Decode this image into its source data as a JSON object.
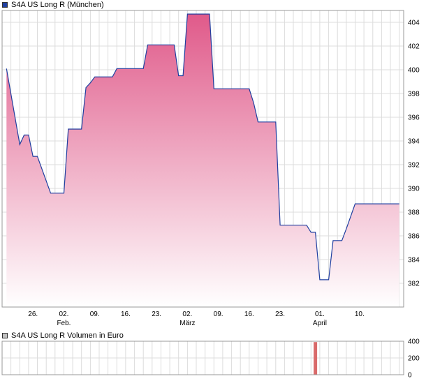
{
  "price_chart": {
    "legend_label": "S4A US Long R (München)",
    "line_color": "#1f3fa0",
    "fill_top_color": "#e05a8a",
    "fill_bottom_color": "#ffffff",
    "swatch_color": "#1f3fa0",
    "x_tick_labels": [
      "26.",
      "02.",
      "09.",
      "16.",
      "23.",
      "02.",
      "09.",
      "16.",
      "23.",
      "01.",
      "10."
    ],
    "month_labels": [
      "Feb.",
      "März",
      "April"
    ]
  },
  "volume_chart": {
    "legend_label": "S4A US Long R Volumen in Euro",
    "swatch_color": "#c0c0c0",
    "bar_color": "#d96a6a"
  },
  "chart_data": [
    {
      "type": "area",
      "title": "S4A US Long R (München)",
      "ylim": [
        380,
        405
      ],
      "y_ticks": [
        382,
        384,
        386,
        388,
        390,
        392,
        394,
        396,
        398,
        400,
        402,
        404
      ],
      "grid": true,
      "series": [
        {
          "values": [
            {
              "x": "2023-01-20",
              "y": 400.1
            },
            {
              "x": "2023-01-23",
              "y": 393.7
            },
            {
              "x": "2023-01-24",
              "y": 394.5
            },
            {
              "x": "2023-01-25",
              "y": 394.5
            },
            {
              "x": "2023-01-26",
              "y": 392.7
            },
            {
              "x": "2023-01-27",
              "y": 392.7
            },
            {
              "x": "2023-01-30",
              "y": 389.6
            },
            {
              "x": "2023-02-01",
              "y": 389.6
            },
            {
              "x": "2023-02-02",
              "y": 389.6
            },
            {
              "x": "2023-02-03",
              "y": 395.0
            },
            {
              "x": "2023-02-06",
              "y": 395.0
            },
            {
              "x": "2023-02-07",
              "y": 398.5
            },
            {
              "x": "2023-02-08",
              "y": 398.9
            },
            {
              "x": "2023-02-09",
              "y": 399.4
            },
            {
              "x": "2023-02-13",
              "y": 399.4
            },
            {
              "x": "2023-02-14",
              "y": 400.1
            },
            {
              "x": "2023-02-20",
              "y": 400.1
            },
            {
              "x": "2023-02-21",
              "y": 402.1
            },
            {
              "x": "2023-02-27",
              "y": 402.1
            },
            {
              "x": "2023-02-28",
              "y": 399.5
            },
            {
              "x": "2023-03-01",
              "y": 399.5
            },
            {
              "x": "2023-03-02",
              "y": 404.7
            },
            {
              "x": "2023-03-07",
              "y": 404.7
            },
            {
              "x": "2023-03-08",
              "y": 398.4
            },
            {
              "x": "2023-03-16",
              "y": 398.4
            },
            {
              "x": "2023-03-17",
              "y": 397.2
            },
            {
              "x": "2023-03-18",
              "y": 395.6
            },
            {
              "x": "2023-03-22",
              "y": 395.6
            },
            {
              "x": "2023-03-23",
              "y": 386.9
            },
            {
              "x": "2023-03-29",
              "y": 386.9
            },
            {
              "x": "2023-03-30",
              "y": 386.3
            },
            {
              "x": "2023-03-31",
              "y": 386.3
            },
            {
              "x": "2023-04-01",
              "y": 382.3
            },
            {
              "x": "2023-04-03",
              "y": 382.3
            },
            {
              "x": "2023-04-04",
              "y": 385.6
            },
            {
              "x": "2023-04-06",
              "y": 385.6
            },
            {
              "x": "2023-04-07",
              "y": 386.6
            },
            {
              "x": "2023-04-09",
              "y": 388.7
            },
            {
              "x": "2023-04-19",
              "y": 388.7
            }
          ]
        }
      ]
    },
    {
      "type": "bar",
      "title": "S4A US Long R Volumen in Euro",
      "ylim": [
        0,
        400
      ],
      "y_ticks": [
        0,
        200,
        400
      ],
      "grid": true,
      "series": [
        {
          "values": [
            {
              "x": "2023-03-31",
              "y": 390
            }
          ]
        }
      ]
    }
  ]
}
